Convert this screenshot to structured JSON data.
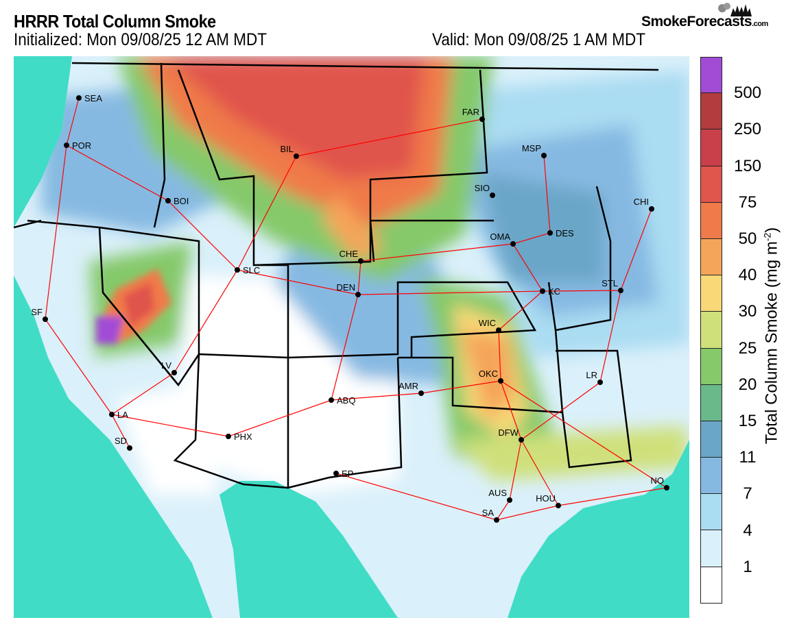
{
  "header": {
    "title": "HRRR Total Column Smoke",
    "initialized": "Initialized: Mon 09/08/25 12 AM MDT",
    "valid": "Valid: Mon 09/08/25 1 AM MDT",
    "logo": "SmokeForecasts.com"
  },
  "legend": {
    "title": "Total Column Smoke (mg m",
    "title_sup": "-2",
    "title_close": ")",
    "ticks": [
      "500",
      "250",
      "150",
      "75",
      "50",
      "40",
      "30",
      "25",
      "20",
      "15",
      "11",
      "7",
      "4",
      "1"
    ],
    "colors": [
      "#a24cd6",
      "#b23c3e",
      "#c9404a",
      "#e0554c",
      "#f07a4a",
      "#f5a55a",
      "#f8d877",
      "#cfe07a",
      "#85c96a",
      "#69b98b",
      "#6aa6c8",
      "#86b9e2",
      "#aadcf2",
      "#daf0fa",
      "#ffffff"
    ]
  },
  "map": {
    "ocean_color": "#40dcc6",
    "cities": [
      "SEA",
      "POR",
      "BOI",
      "SF",
      "LA",
      "SD",
      "LV",
      "PHX",
      "SLC",
      "BIL",
      "CHE",
      "DEN",
      "ABQ",
      "EP",
      "AMR",
      "WIC",
      "OKC",
      "DFW",
      "AUS",
      "SA",
      "HOU",
      "NO",
      "LR",
      "KC",
      "STL",
      "OMA",
      "DES",
      "SIO",
      "FAR",
      "MSP",
      "CHI"
    ]
  }
}
